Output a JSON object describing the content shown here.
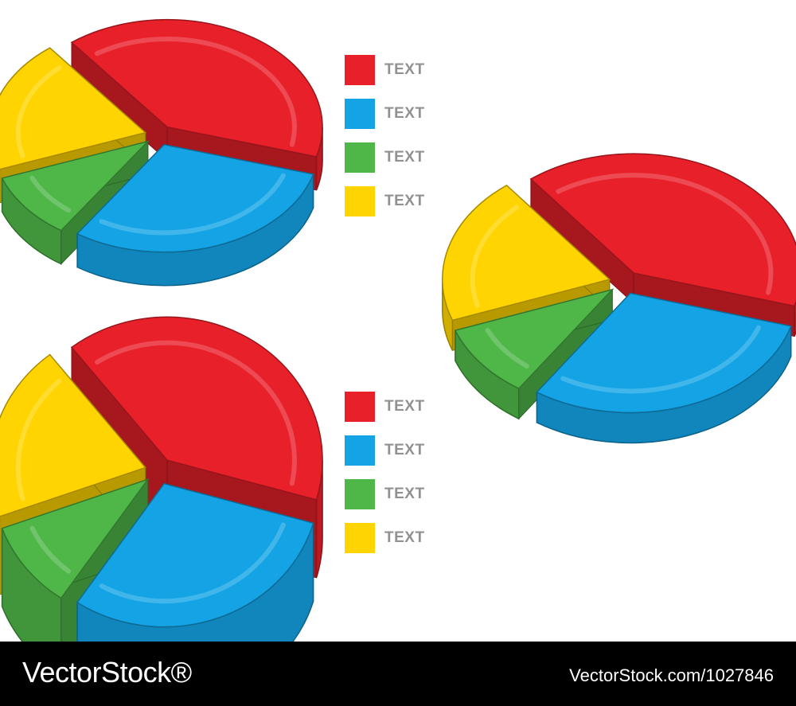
{
  "chart_data": [
    {
      "type": "pie",
      "style": "3d-exploded",
      "categories": [
        "",
        "",
        "",
        ""
      ],
      "values": [
        40,
        30,
        10,
        20
      ],
      "colors": [
        "#e8202a",
        "#14a4e6",
        "#4fb748",
        "#ffd400"
      ],
      "legend": {
        "entries": [
          "TEXT",
          "TEXT",
          "TEXT",
          "TEXT"
        ],
        "placement": "right"
      }
    },
    {
      "type": "pie",
      "style": "3d-exploded",
      "categories": [
        "",
        "",
        "",
        ""
      ],
      "values": [
        40,
        30,
        10,
        20
      ],
      "colors": [
        "#e8202a",
        "#14a4e6",
        "#4fb748",
        "#ffd400"
      ]
    },
    {
      "type": "pie",
      "style": "3d-exploded",
      "categories": [
        "",
        "",
        "",
        ""
      ],
      "values": [
        40,
        30,
        10,
        20
      ],
      "colors": [
        "#e8202a",
        "#14a4e6",
        "#4fb748",
        "#ffd400"
      ],
      "legend": {
        "entries": [
          "TEXT",
          "TEXT",
          "TEXT",
          "TEXT"
        ],
        "placement": "right"
      }
    }
  ],
  "legend_top": {
    "items": [
      {
        "label": "TEXT",
        "color": "#e8202a"
      },
      {
        "label": "TEXT",
        "color": "#14a4e6"
      },
      {
        "label": "TEXT",
        "color": "#4fb748"
      },
      {
        "label": "TEXT",
        "color": "#ffd400"
      }
    ]
  },
  "legend_bottom": {
    "items": [
      {
        "label": "TEXT",
        "color": "#e8202a"
      },
      {
        "label": "TEXT",
        "color": "#14a4e6"
      },
      {
        "label": "TEXT",
        "color": "#4fb748"
      },
      {
        "label": "TEXT",
        "color": "#ffd400"
      }
    ]
  },
  "footer": {
    "brand": "VectorStock®",
    "image_id": "VectorStock.com/1027846"
  }
}
